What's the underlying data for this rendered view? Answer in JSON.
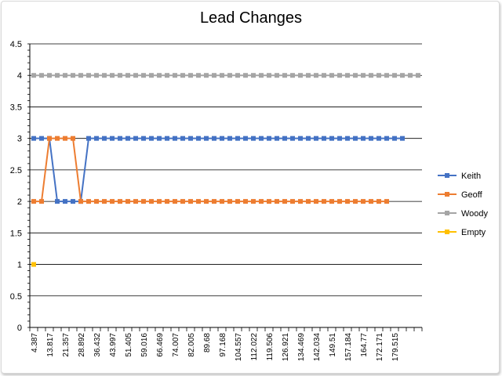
{
  "chart_data": {
    "type": "line",
    "title": "Lead Changes",
    "xlabel": "",
    "ylabel": "",
    "ylim": [
      0,
      4.5
    ],
    "yticks": [
      "0",
      "0.5",
      "1",
      "1.5",
      "2",
      "2.5",
      "3",
      "3.5",
      "4",
      "4.5"
    ],
    "grid": true,
    "legend_position": "right",
    "x_tick_labels": [
      "4.387",
      "13.817",
      "21.357",
      "28.892",
      "36.432",
      "43.997",
      "51.405",
      "59.016",
      "66.469",
      "74.007",
      "82.005",
      "89.68",
      "97.168",
      "104.557",
      "112.022",
      "119.506",
      "126.921",
      "134.469",
      "142.034",
      "149.51",
      "157.184",
      "164.77",
      "172.171",
      "179.515"
    ],
    "x_category_count": 50,
    "series": [
      {
        "name": "Keith",
        "color": "#4472C4",
        "values": [
          3,
          3,
          3,
          2,
          2,
          2,
          2,
          3,
          3,
          3,
          3,
          3,
          3,
          3,
          3,
          3,
          3,
          3,
          3,
          3,
          3,
          3,
          3,
          3,
          3,
          3,
          3,
          3,
          3,
          3,
          3,
          3,
          3,
          3,
          3,
          3,
          3,
          3,
          3,
          3,
          3,
          3,
          3,
          3,
          3,
          3,
          3,
          3
        ]
      },
      {
        "name": "Geoff",
        "color": "#ED7D31",
        "values": [
          2,
          2,
          3,
          3,
          3,
          3,
          2,
          2,
          2,
          2,
          2,
          2,
          2,
          2,
          2,
          2,
          2,
          2,
          2,
          2,
          2,
          2,
          2,
          2,
          2,
          2,
          2,
          2,
          2,
          2,
          2,
          2,
          2,
          2,
          2,
          2,
          2,
          2,
          2,
          2,
          2,
          2,
          2,
          2,
          2,
          2
        ]
      },
      {
        "name": "Woody",
        "color": "#A5A5A5",
        "values": [
          4,
          4,
          4,
          4,
          4,
          4,
          4,
          4,
          4,
          4,
          4,
          4,
          4,
          4,
          4,
          4,
          4,
          4,
          4,
          4,
          4,
          4,
          4,
          4,
          4,
          4,
          4,
          4,
          4,
          4,
          4,
          4,
          4,
          4,
          4,
          4,
          4,
          4,
          4,
          4,
          4,
          4,
          4,
          4,
          4,
          4,
          4,
          4,
          4,
          4
        ]
      },
      {
        "name": "Empty",
        "color": "#FFC000",
        "values": [
          1
        ]
      }
    ]
  }
}
